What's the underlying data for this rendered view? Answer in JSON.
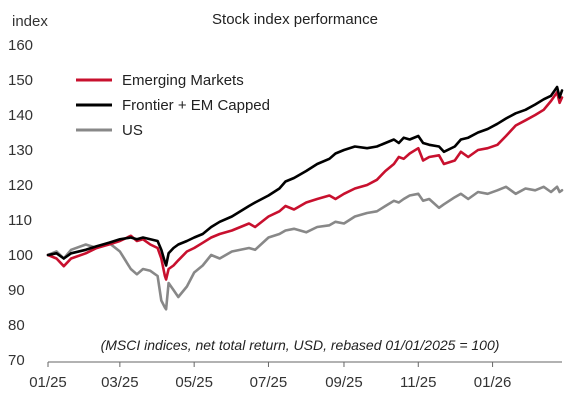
{
  "chart_data": {
    "type": "line",
    "title": "Stock index performance",
    "ylabel": "index",
    "xlabel": "",
    "ylim": [
      70,
      160
    ],
    "yticks": [
      70,
      80,
      90,
      100,
      110,
      120,
      130,
      140,
      150,
      160
    ],
    "xlim": [
      "2025-01-01",
      "2026-02-27"
    ],
    "xticks": [
      {
        "label": "01/25",
        "date": "2025-01-01"
      },
      {
        "label": "03/25",
        "date": "2025-03-01"
      },
      {
        "label": "05/25",
        "date": "2025-05-01"
      },
      {
        "label": "07/25",
        "date": "2025-07-01"
      },
      {
        "label": "09/25",
        "date": "2025-09-01"
      },
      {
        "label": "11/25",
        "date": "2025-11-01"
      },
      {
        "label": "01/26",
        "date": "2026-01-01"
      }
    ],
    "grid": false,
    "legend_position": "top-left",
    "annotation": "(MSCI indices, net total return, USD, rebased 01/01/2025 = 100)",
    "series": [
      {
        "name": "Emerging Markets",
        "color": "#c8102e",
        "points": [
          [
            "2025-01-01",
            100
          ],
          [
            "2025-01-08",
            99
          ],
          [
            "2025-01-14",
            96.8
          ],
          [
            "2025-01-20",
            99
          ],
          [
            "2025-02-01",
            100.5
          ],
          [
            "2025-02-10",
            102
          ],
          [
            "2025-02-20",
            103
          ],
          [
            "2025-03-01",
            104
          ],
          [
            "2025-03-10",
            105.5
          ],
          [
            "2025-03-15",
            104
          ],
          [
            "2025-03-20",
            104.5
          ],
          [
            "2025-03-26",
            103
          ],
          [
            "2025-04-01",
            102
          ],
          [
            "2025-04-04",
            99
          ],
          [
            "2025-04-07",
            94
          ],
          [
            "2025-04-08",
            93
          ],
          [
            "2025-04-10",
            96
          ],
          [
            "2025-04-14",
            97
          ],
          [
            "2025-04-18",
            98.5
          ],
          [
            "2025-04-25",
            101
          ],
          [
            "2025-05-01",
            102
          ],
          [
            "2025-05-08",
            103.5
          ],
          [
            "2025-05-15",
            105
          ],
          [
            "2025-05-22",
            106
          ],
          [
            "2025-06-01",
            107
          ],
          [
            "2025-06-15",
            109
          ],
          [
            "2025-06-20",
            108
          ],
          [
            "2025-07-01",
            111
          ],
          [
            "2025-07-10",
            112.5
          ],
          [
            "2025-07-15",
            114
          ],
          [
            "2025-07-22",
            113
          ],
          [
            "2025-08-01",
            115
          ],
          [
            "2025-08-10",
            116
          ],
          [
            "2025-08-20",
            117
          ],
          [
            "2025-08-25",
            116
          ],
          [
            "2025-09-01",
            117.5
          ],
          [
            "2025-09-10",
            119
          ],
          [
            "2025-09-20",
            120
          ],
          [
            "2025-09-28",
            121.5
          ],
          [
            "2025-10-05",
            124
          ],
          [
            "2025-10-12",
            126
          ],
          [
            "2025-10-16",
            128
          ],
          [
            "2025-10-20",
            127.5
          ],
          [
            "2025-10-25",
            129
          ],
          [
            "2025-11-01",
            130.5
          ],
          [
            "2025-11-05",
            127
          ],
          [
            "2025-11-10",
            128
          ],
          [
            "2025-11-18",
            128.5
          ],
          [
            "2025-11-22",
            126
          ],
          [
            "2025-12-01",
            127
          ],
          [
            "2025-12-06",
            129.5
          ],
          [
            "2025-12-12",
            128
          ],
          [
            "2025-12-20",
            130
          ],
          [
            "2025-12-28",
            130.5
          ],
          [
            "2026-01-05",
            131.5
          ],
          [
            "2026-01-12",
            134
          ],
          [
            "2026-01-20",
            137
          ],
          [
            "2026-01-28",
            138.5
          ],
          [
            "2026-02-05",
            140
          ],
          [
            "2026-02-12",
            141.5
          ],
          [
            "2026-02-18",
            144
          ],
          [
            "2026-02-23",
            146.5
          ],
          [
            "2026-02-25",
            143.5
          ],
          [
            "2026-02-27",
            145
          ]
        ]
      },
      {
        "name": "Frontier + EM Capped",
        "color": "#000000",
        "points": [
          [
            "2025-01-01",
            100
          ],
          [
            "2025-01-08",
            100.5
          ],
          [
            "2025-01-14",
            99
          ],
          [
            "2025-01-20",
            100.5
          ],
          [
            "2025-02-01",
            101.5
          ],
          [
            "2025-02-10",
            102.5
          ],
          [
            "2025-02-20",
            103.5
          ],
          [
            "2025-03-01",
            104.5
          ],
          [
            "2025-03-10",
            105
          ],
          [
            "2025-03-15",
            104.5
          ],
          [
            "2025-03-20",
            105
          ],
          [
            "2025-03-26",
            104.5
          ],
          [
            "2025-04-01",
            104
          ],
          [
            "2025-04-04",
            101.5
          ],
          [
            "2025-04-07",
            98
          ],
          [
            "2025-04-08",
            97
          ],
          [
            "2025-04-10",
            100.5
          ],
          [
            "2025-04-14",
            102
          ],
          [
            "2025-04-18",
            103
          ],
          [
            "2025-04-25",
            104
          ],
          [
            "2025-05-01",
            105
          ],
          [
            "2025-05-08",
            106
          ],
          [
            "2025-05-15",
            108
          ],
          [
            "2025-05-22",
            109.5
          ],
          [
            "2025-06-01",
            111
          ],
          [
            "2025-06-15",
            114
          ],
          [
            "2025-06-20",
            115
          ],
          [
            "2025-07-01",
            117
          ],
          [
            "2025-07-10",
            119
          ],
          [
            "2025-07-15",
            121
          ],
          [
            "2025-07-22",
            122
          ],
          [
            "2025-08-01",
            124
          ],
          [
            "2025-08-10",
            126
          ],
          [
            "2025-08-20",
            127.5
          ],
          [
            "2025-08-25",
            129
          ],
          [
            "2025-09-01",
            130
          ],
          [
            "2025-09-10",
            131
          ],
          [
            "2025-09-20",
            130.5
          ],
          [
            "2025-09-28",
            131
          ],
          [
            "2025-10-05",
            132
          ],
          [
            "2025-10-12",
            133
          ],
          [
            "2025-10-16",
            132
          ],
          [
            "2025-10-20",
            133.5
          ],
          [
            "2025-10-25",
            133
          ],
          [
            "2025-11-01",
            134
          ],
          [
            "2025-11-05",
            132
          ],
          [
            "2025-11-10",
            131.5
          ],
          [
            "2025-11-18",
            131
          ],
          [
            "2025-11-22",
            129.5
          ],
          [
            "2025-12-01",
            131
          ],
          [
            "2025-12-06",
            133
          ],
          [
            "2025-12-12",
            133.5
          ],
          [
            "2025-12-20",
            135
          ],
          [
            "2025-12-28",
            136
          ],
          [
            "2026-01-05",
            137.5
          ],
          [
            "2026-01-12",
            139
          ],
          [
            "2026-01-20",
            140.5
          ],
          [
            "2026-01-28",
            141.5
          ],
          [
            "2026-02-05",
            143
          ],
          [
            "2026-02-12",
            144.5
          ],
          [
            "2026-02-18",
            145.5
          ],
          [
            "2026-02-23",
            148
          ],
          [
            "2026-02-25",
            145
          ],
          [
            "2026-02-27",
            147
          ]
        ]
      },
      {
        "name": "US",
        "color": "#888888",
        "points": [
          [
            "2025-01-01",
            100
          ],
          [
            "2025-01-08",
            101
          ],
          [
            "2025-01-14",
            99
          ],
          [
            "2025-01-20",
            101.5
          ],
          [
            "2025-02-01",
            103
          ],
          [
            "2025-02-10",
            102
          ],
          [
            "2025-02-20",
            103.5
          ],
          [
            "2025-03-01",
            101
          ],
          [
            "2025-03-10",
            96
          ],
          [
            "2025-03-15",
            94.5
          ],
          [
            "2025-03-20",
            96
          ],
          [
            "2025-03-26",
            95.5
          ],
          [
            "2025-04-01",
            94
          ],
          [
            "2025-04-04",
            87
          ],
          [
            "2025-04-07",
            85
          ],
          [
            "2025-04-08",
            84.5
          ],
          [
            "2025-04-10",
            92
          ],
          [
            "2025-04-14",
            90
          ],
          [
            "2025-04-18",
            88
          ],
          [
            "2025-04-25",
            91
          ],
          [
            "2025-05-01",
            95
          ],
          [
            "2025-05-08",
            97
          ],
          [
            "2025-05-15",
            100
          ],
          [
            "2025-05-22",
            99
          ],
          [
            "2025-06-01",
            101
          ],
          [
            "2025-06-15",
            102
          ],
          [
            "2025-06-20",
            101.5
          ],
          [
            "2025-07-01",
            105
          ],
          [
            "2025-07-10",
            106
          ],
          [
            "2025-07-15",
            107
          ],
          [
            "2025-07-22",
            107.5
          ],
          [
            "2025-08-01",
            106.5
          ],
          [
            "2025-08-10",
            108
          ],
          [
            "2025-08-20",
            108.5
          ],
          [
            "2025-08-25",
            109.5
          ],
          [
            "2025-09-01",
            109
          ],
          [
            "2025-09-10",
            111
          ],
          [
            "2025-09-20",
            112
          ],
          [
            "2025-09-28",
            112.5
          ],
          [
            "2025-10-05",
            114
          ],
          [
            "2025-10-12",
            115.5
          ],
          [
            "2025-10-16",
            115
          ],
          [
            "2025-10-20",
            116
          ],
          [
            "2025-10-25",
            117
          ],
          [
            "2025-11-01",
            117.5
          ],
          [
            "2025-11-05",
            115.5
          ],
          [
            "2025-11-10",
            116
          ],
          [
            "2025-11-18",
            113.5
          ],
          [
            "2025-11-22",
            114.5
          ],
          [
            "2025-12-01",
            116.5
          ],
          [
            "2025-12-06",
            117.5
          ],
          [
            "2025-12-12",
            116
          ],
          [
            "2025-12-20",
            118
          ],
          [
            "2025-12-28",
            117.5
          ],
          [
            "2026-01-05",
            118.5
          ],
          [
            "2026-01-12",
            119.5
          ],
          [
            "2026-01-20",
            117.5
          ],
          [
            "2026-01-28",
            119
          ],
          [
            "2026-02-05",
            118.5
          ],
          [
            "2026-02-12",
            119.5
          ],
          [
            "2026-02-18",
            118
          ],
          [
            "2026-02-23",
            119.5
          ],
          [
            "2026-02-25",
            118
          ],
          [
            "2026-02-27",
            118.5
          ]
        ]
      }
    ]
  }
}
